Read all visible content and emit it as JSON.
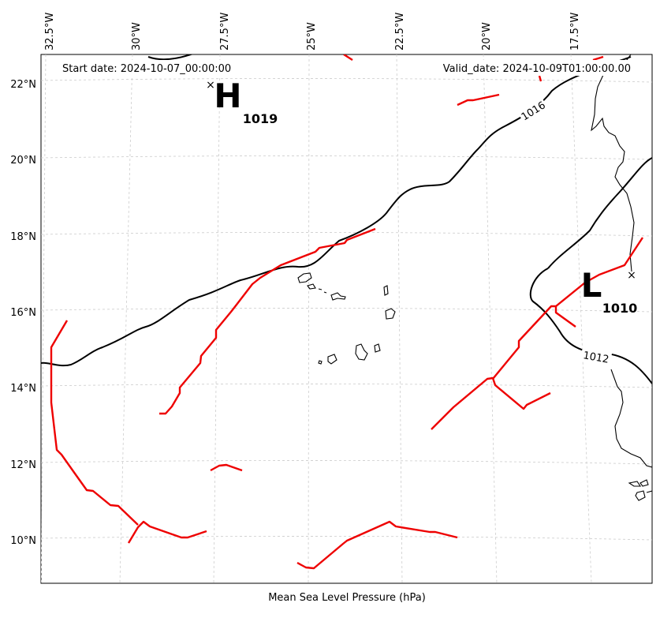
{
  "map": {
    "start_date": "Start date: 2024-10-07_00:00:00",
    "valid_date": "Valid_date: 2024-10-09T01:00:00.00",
    "caption": "Mean Sea Level Pressure (hPa)",
    "lon_ticks": [
      "32.5°W",
      "30°W",
      "27.5°W",
      "25°W",
      "22.5°W",
      "20°W",
      "17.5°W"
    ],
    "lat_ticks": [
      "22°N",
      "20°N",
      "18°N",
      "16°N",
      "14°N",
      "12°N",
      "10°N"
    ],
    "high": {
      "letter": "H",
      "value": "1019"
    },
    "low": {
      "letter": "L",
      "value": "1010"
    },
    "contour_labels": [
      "1016",
      "1012"
    ],
    "colors": {
      "isobar": "#000000",
      "front": "#ee0000",
      "grid": "#cccccc",
      "coast": "#000000"
    }
  }
}
